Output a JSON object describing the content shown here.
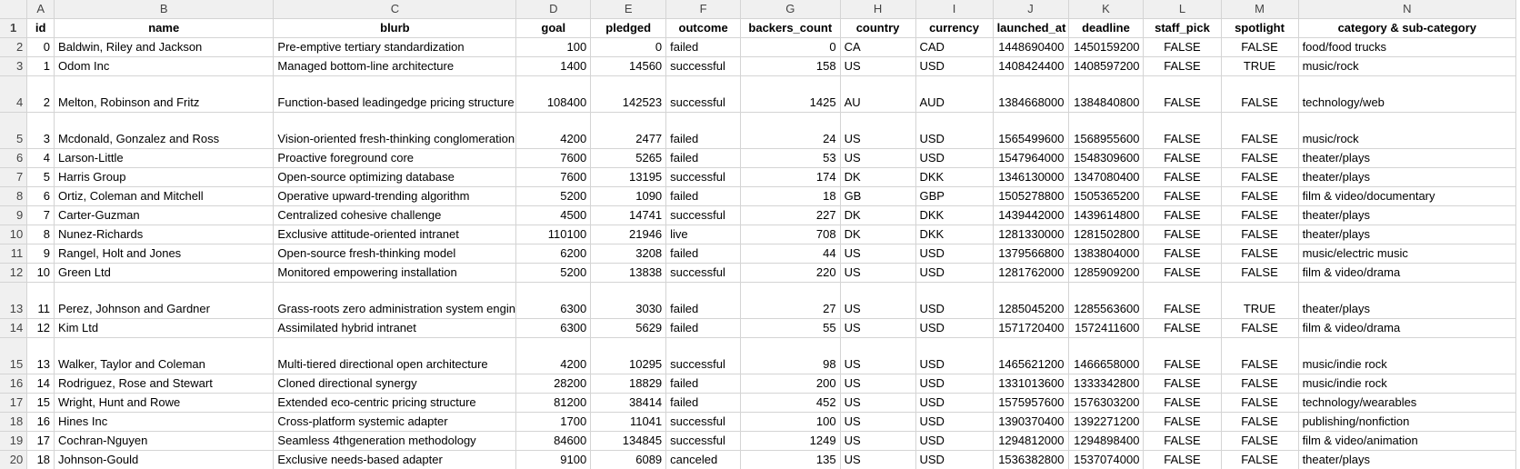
{
  "columns": [
    "A",
    "B",
    "C",
    "D",
    "E",
    "F",
    "G",
    "H",
    "I",
    "J",
    "K",
    "L",
    "M",
    "N"
  ],
  "headers": [
    "id",
    "name",
    "blurb",
    "goal",
    "pledged",
    "outcome",
    "backers_count",
    "country",
    "currency",
    "launched_at",
    "deadline",
    "staff_pick",
    "spotlight",
    "category & sub-category"
  ],
  "row_numbers": [
    "1",
    "2",
    "3",
    "4",
    "5",
    "6",
    "7",
    "8",
    "9",
    "10",
    "11",
    "12",
    "13",
    "14",
    "15",
    "16",
    "17",
    "18",
    "19",
    "20"
  ],
  "rows": [
    {
      "id": "0",
      "name": "Baldwin, Riley and Jackson",
      "blurb": "Pre-emptive tertiary standardization",
      "goal": "100",
      "pledged": "0",
      "outcome": "failed",
      "backers_count": "0",
      "country": "CA",
      "currency": "CAD",
      "launched_at": "1448690400",
      "deadline": "1450159200",
      "staff_pick": "FALSE",
      "spotlight": "FALSE",
      "category": "food/food trucks"
    },
    {
      "id": "1",
      "name": "Odom Inc",
      "blurb": "Managed bottom-line architecture",
      "goal": "1400",
      "pledged": "14560",
      "outcome": "successful",
      "backers_count": "158",
      "country": "US",
      "currency": "USD",
      "launched_at": "1408424400",
      "deadline": "1408597200",
      "staff_pick": "FALSE",
      "spotlight": "TRUE",
      "category": "music/rock"
    },
    {
      "id": "2",
      "name": "Melton, Robinson and Fritz",
      "blurb": "Function-based leadingedge pricing structure",
      "goal": "108400",
      "pledged": "142523",
      "outcome": "successful",
      "backers_count": "1425",
      "country": "AU",
      "currency": "AUD",
      "launched_at": "1384668000",
      "deadline": "1384840800",
      "staff_pick": "FALSE",
      "spotlight": "FALSE",
      "category": "technology/web"
    },
    {
      "id": "3",
      "name": "Mcdonald, Gonzalez and Ross",
      "blurb": "Vision-oriented fresh-thinking conglomeration",
      "goal": "4200",
      "pledged": "2477",
      "outcome": "failed",
      "backers_count": "24",
      "country": "US",
      "currency": "USD",
      "launched_at": "1565499600",
      "deadline": "1568955600",
      "staff_pick": "FALSE",
      "spotlight": "FALSE",
      "category": "music/rock"
    },
    {
      "id": "4",
      "name": "Larson-Little",
      "blurb": "Proactive foreground core",
      "goal": "7600",
      "pledged": "5265",
      "outcome": "failed",
      "backers_count": "53",
      "country": "US",
      "currency": "USD",
      "launched_at": "1547964000",
      "deadline": "1548309600",
      "staff_pick": "FALSE",
      "spotlight": "FALSE",
      "category": "theater/plays"
    },
    {
      "id": "5",
      "name": "Harris Group",
      "blurb": "Open-source optimizing database",
      "goal": "7600",
      "pledged": "13195",
      "outcome": "successful",
      "backers_count": "174",
      "country": "DK",
      "currency": "DKK",
      "launched_at": "1346130000",
      "deadline": "1347080400",
      "staff_pick": "FALSE",
      "spotlight": "FALSE",
      "category": "theater/plays"
    },
    {
      "id": "6",
      "name": "Ortiz, Coleman and Mitchell",
      "blurb": "Operative upward-trending algorithm",
      "goal": "5200",
      "pledged": "1090",
      "outcome": "failed",
      "backers_count": "18",
      "country": "GB",
      "currency": "GBP",
      "launched_at": "1505278800",
      "deadline": "1505365200",
      "staff_pick": "FALSE",
      "spotlight": "FALSE",
      "category": "film & video/documentary"
    },
    {
      "id": "7",
      "name": "Carter-Guzman",
      "blurb": "Centralized cohesive challenge",
      "goal": "4500",
      "pledged": "14741",
      "outcome": "successful",
      "backers_count": "227",
      "country": "DK",
      "currency": "DKK",
      "launched_at": "1439442000",
      "deadline": "1439614800",
      "staff_pick": "FALSE",
      "spotlight": "FALSE",
      "category": "theater/plays"
    },
    {
      "id": "8",
      "name": "Nunez-Richards",
      "blurb": "Exclusive attitude-oriented intranet",
      "goal": "110100",
      "pledged": "21946",
      "outcome": "live",
      "backers_count": "708",
      "country": "DK",
      "currency": "DKK",
      "launched_at": "1281330000",
      "deadline": "1281502800",
      "staff_pick": "FALSE",
      "spotlight": "FALSE",
      "category": "theater/plays"
    },
    {
      "id": "9",
      "name": "Rangel, Holt and Jones",
      "blurb": "Open-source fresh-thinking model",
      "goal": "6200",
      "pledged": "3208",
      "outcome": "failed",
      "backers_count": "44",
      "country": "US",
      "currency": "USD",
      "launched_at": "1379566800",
      "deadline": "1383804000",
      "staff_pick": "FALSE",
      "spotlight": "FALSE",
      "category": "music/electric music"
    },
    {
      "id": "10",
      "name": "Green Ltd",
      "blurb": "Monitored empowering installation",
      "goal": "5200",
      "pledged": "13838",
      "outcome": "successful",
      "backers_count": "220",
      "country": "US",
      "currency": "USD",
      "launched_at": "1281762000",
      "deadline": "1285909200",
      "staff_pick": "FALSE",
      "spotlight": "FALSE",
      "category": "film & video/drama"
    },
    {
      "id": "11",
      "name": "Perez, Johnson and Gardner",
      "blurb": "Grass-roots zero administration system engine",
      "goal": "6300",
      "pledged": "3030",
      "outcome": "failed",
      "backers_count": "27",
      "country": "US",
      "currency": "USD",
      "launched_at": "1285045200",
      "deadline": "1285563600",
      "staff_pick": "FALSE",
      "spotlight": "TRUE",
      "category": "theater/plays"
    },
    {
      "id": "12",
      "name": "Kim Ltd",
      "blurb": "Assimilated hybrid intranet",
      "goal": "6300",
      "pledged": "5629",
      "outcome": "failed",
      "backers_count": "55",
      "country": "US",
      "currency": "USD",
      "launched_at": "1571720400",
      "deadline": "1572411600",
      "staff_pick": "FALSE",
      "spotlight": "FALSE",
      "category": "film & video/drama"
    },
    {
      "id": "13",
      "name": "Walker, Taylor and Coleman",
      "blurb": "Multi-tiered directional open architecture",
      "goal": "4200",
      "pledged": "10295",
      "outcome": "successful",
      "backers_count": "98",
      "country": "US",
      "currency": "USD",
      "launched_at": "1465621200",
      "deadline": "1466658000",
      "staff_pick": "FALSE",
      "spotlight": "FALSE",
      "category": "music/indie rock"
    },
    {
      "id": "14",
      "name": "Rodriguez, Rose and Stewart",
      "blurb": "Cloned directional synergy",
      "goal": "28200",
      "pledged": "18829",
      "outcome": "failed",
      "backers_count": "200",
      "country": "US",
      "currency": "USD",
      "launched_at": "1331013600",
      "deadline": "1333342800",
      "staff_pick": "FALSE",
      "spotlight": "FALSE",
      "category": "music/indie rock"
    },
    {
      "id": "15",
      "name": "Wright, Hunt and Rowe",
      "blurb": "Extended eco-centric pricing structure",
      "goal": "81200",
      "pledged": "38414",
      "outcome": "failed",
      "backers_count": "452",
      "country": "US",
      "currency": "USD",
      "launched_at": "1575957600",
      "deadline": "1576303200",
      "staff_pick": "FALSE",
      "spotlight": "FALSE",
      "category": "technology/wearables"
    },
    {
      "id": "16",
      "name": "Hines Inc",
      "blurb": "Cross-platform systemic adapter",
      "goal": "1700",
      "pledged": "11041",
      "outcome": "successful",
      "backers_count": "100",
      "country": "US",
      "currency": "USD",
      "launched_at": "1390370400",
      "deadline": "1392271200",
      "staff_pick": "FALSE",
      "spotlight": "FALSE",
      "category": "publishing/nonfiction"
    },
    {
      "id": "17",
      "name": "Cochran-Nguyen",
      "blurb": "Seamless 4thgeneration methodology",
      "goal": "84600",
      "pledged": "134845",
      "outcome": "successful",
      "backers_count": "1249",
      "country": "US",
      "currency": "USD",
      "launched_at": "1294812000",
      "deadline": "1294898400",
      "staff_pick": "FALSE",
      "spotlight": "FALSE",
      "category": "film & video/animation"
    },
    {
      "id": "18",
      "name": "Johnson-Gould",
      "blurb": "Exclusive needs-based adapter",
      "goal": "9100",
      "pledged": "6089",
      "outcome": "canceled",
      "backers_count": "135",
      "country": "US",
      "currency": "USD",
      "launched_at": "1536382800",
      "deadline": "1537074000",
      "staff_pick": "FALSE",
      "spotlight": "FALSE",
      "category": "theater/plays"
    }
  ]
}
